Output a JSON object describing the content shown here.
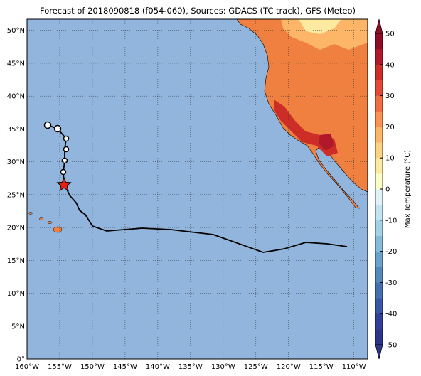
{
  "map": {
    "title": "Forecast of 2018090818 (f054-060), Sources: GDACS (TC track), GFS (Meteo)",
    "xlim": [
      -160,
      -107.9
    ],
    "ylim": [
      0,
      51.7
    ],
    "xticks": [
      {
        "value": -160,
        "label": "160°W"
      },
      {
        "value": -155,
        "label": "155°W"
      },
      {
        "value": -150,
        "label": "150°W"
      },
      {
        "value": -145,
        "label": "145°W"
      },
      {
        "value": -140,
        "label": "140°W"
      },
      {
        "value": -135,
        "label": "135°W"
      },
      {
        "value": -130,
        "label": "130°W"
      },
      {
        "value": -125,
        "label": "125°W"
      },
      {
        "value": -120,
        "label": "120°W"
      },
      {
        "value": -115,
        "label": "115°W"
      },
      {
        "value": -110,
        "label": "110°W"
      }
    ],
    "yticks": [
      {
        "value": 0,
        "label": "0°"
      },
      {
        "value": 5,
        "label": "5°N"
      },
      {
        "value": 10,
        "label": "10°N"
      },
      {
        "value": 15,
        "label": "15°N"
      },
      {
        "value": 20,
        "label": "20°N"
      },
      {
        "value": 25,
        "label": "25°N"
      },
      {
        "value": 30,
        "label": "30°N"
      },
      {
        "value": 35,
        "label": "35°N"
      },
      {
        "value": 40,
        "label": "40°N"
      },
      {
        "value": 45,
        "label": "45°N"
      },
      {
        "value": 50,
        "label": "50°N"
      }
    ],
    "colorbar": {
      "label": "Max Temperature (°C)",
      "lim": [
        -50,
        50
      ],
      "ticks": [
        -50,
        -40,
        -30,
        -20,
        -10,
        0,
        10,
        20,
        30,
        40,
        50
      ],
      "colors": [
        "#2b3589",
        "#313f99",
        "#3a56a8",
        "#4470b2",
        "#5389bd",
        "#6aa2cb",
        "#86bbd9",
        "#a4d1e6",
        "#c2e3ef",
        "#e0f2f6",
        "#fbfdc7",
        "#fee9a0",
        "#fed283",
        "#fdb567",
        "#fa9250",
        "#f26d40",
        "#e34a33",
        "#cc2e27",
        "#b1182a",
        "#8e0c25"
      ]
    }
  }
}
